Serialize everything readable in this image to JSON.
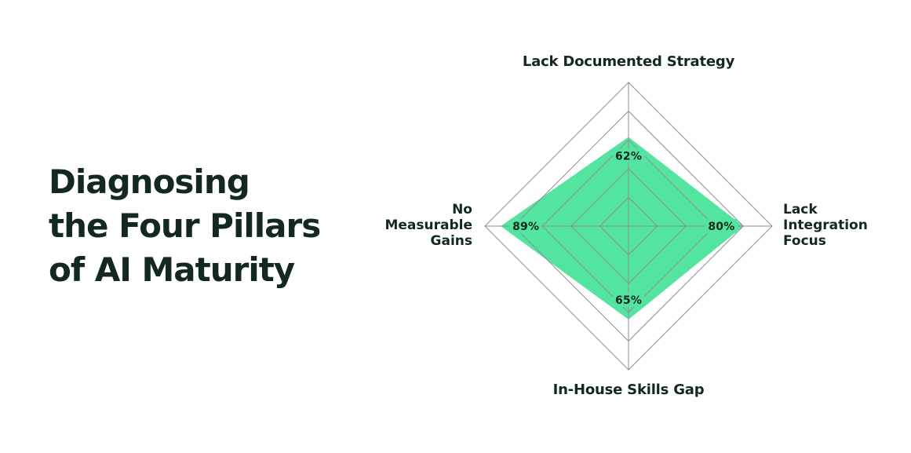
{
  "page": {
    "background": "#ffffff"
  },
  "heading": {
    "text": "Diagnosing the Four Pillars of AI Maturity",
    "lines": [
      "Diagnosing",
      "the Four Pillars",
      "of AI Maturity"
    ],
    "color": "#13281e"
  },
  "chart_data": {
    "type": "radar",
    "title": "Diagnosing the Four Pillars of AI Maturity",
    "categories": [
      "Lack Documented Strategy",
      "Lack Integration Focus",
      "In-House Skills Gap",
      "No Measurable Gains"
    ],
    "values": [
      62,
      80,
      65,
      89
    ],
    "value_labels": [
      "62%",
      "80%",
      "65%",
      "89%"
    ],
    "unit": "%",
    "max": 100,
    "rings_percent": [
      20,
      40,
      60,
      80,
      100
    ],
    "grid": true,
    "legend": false,
    "axis_order": [
      "top",
      "right",
      "bottom",
      "left"
    ],
    "colors": {
      "fill": "#53e5a0",
      "gridline": "#8f8f8f",
      "label": "#13281e"
    }
  }
}
